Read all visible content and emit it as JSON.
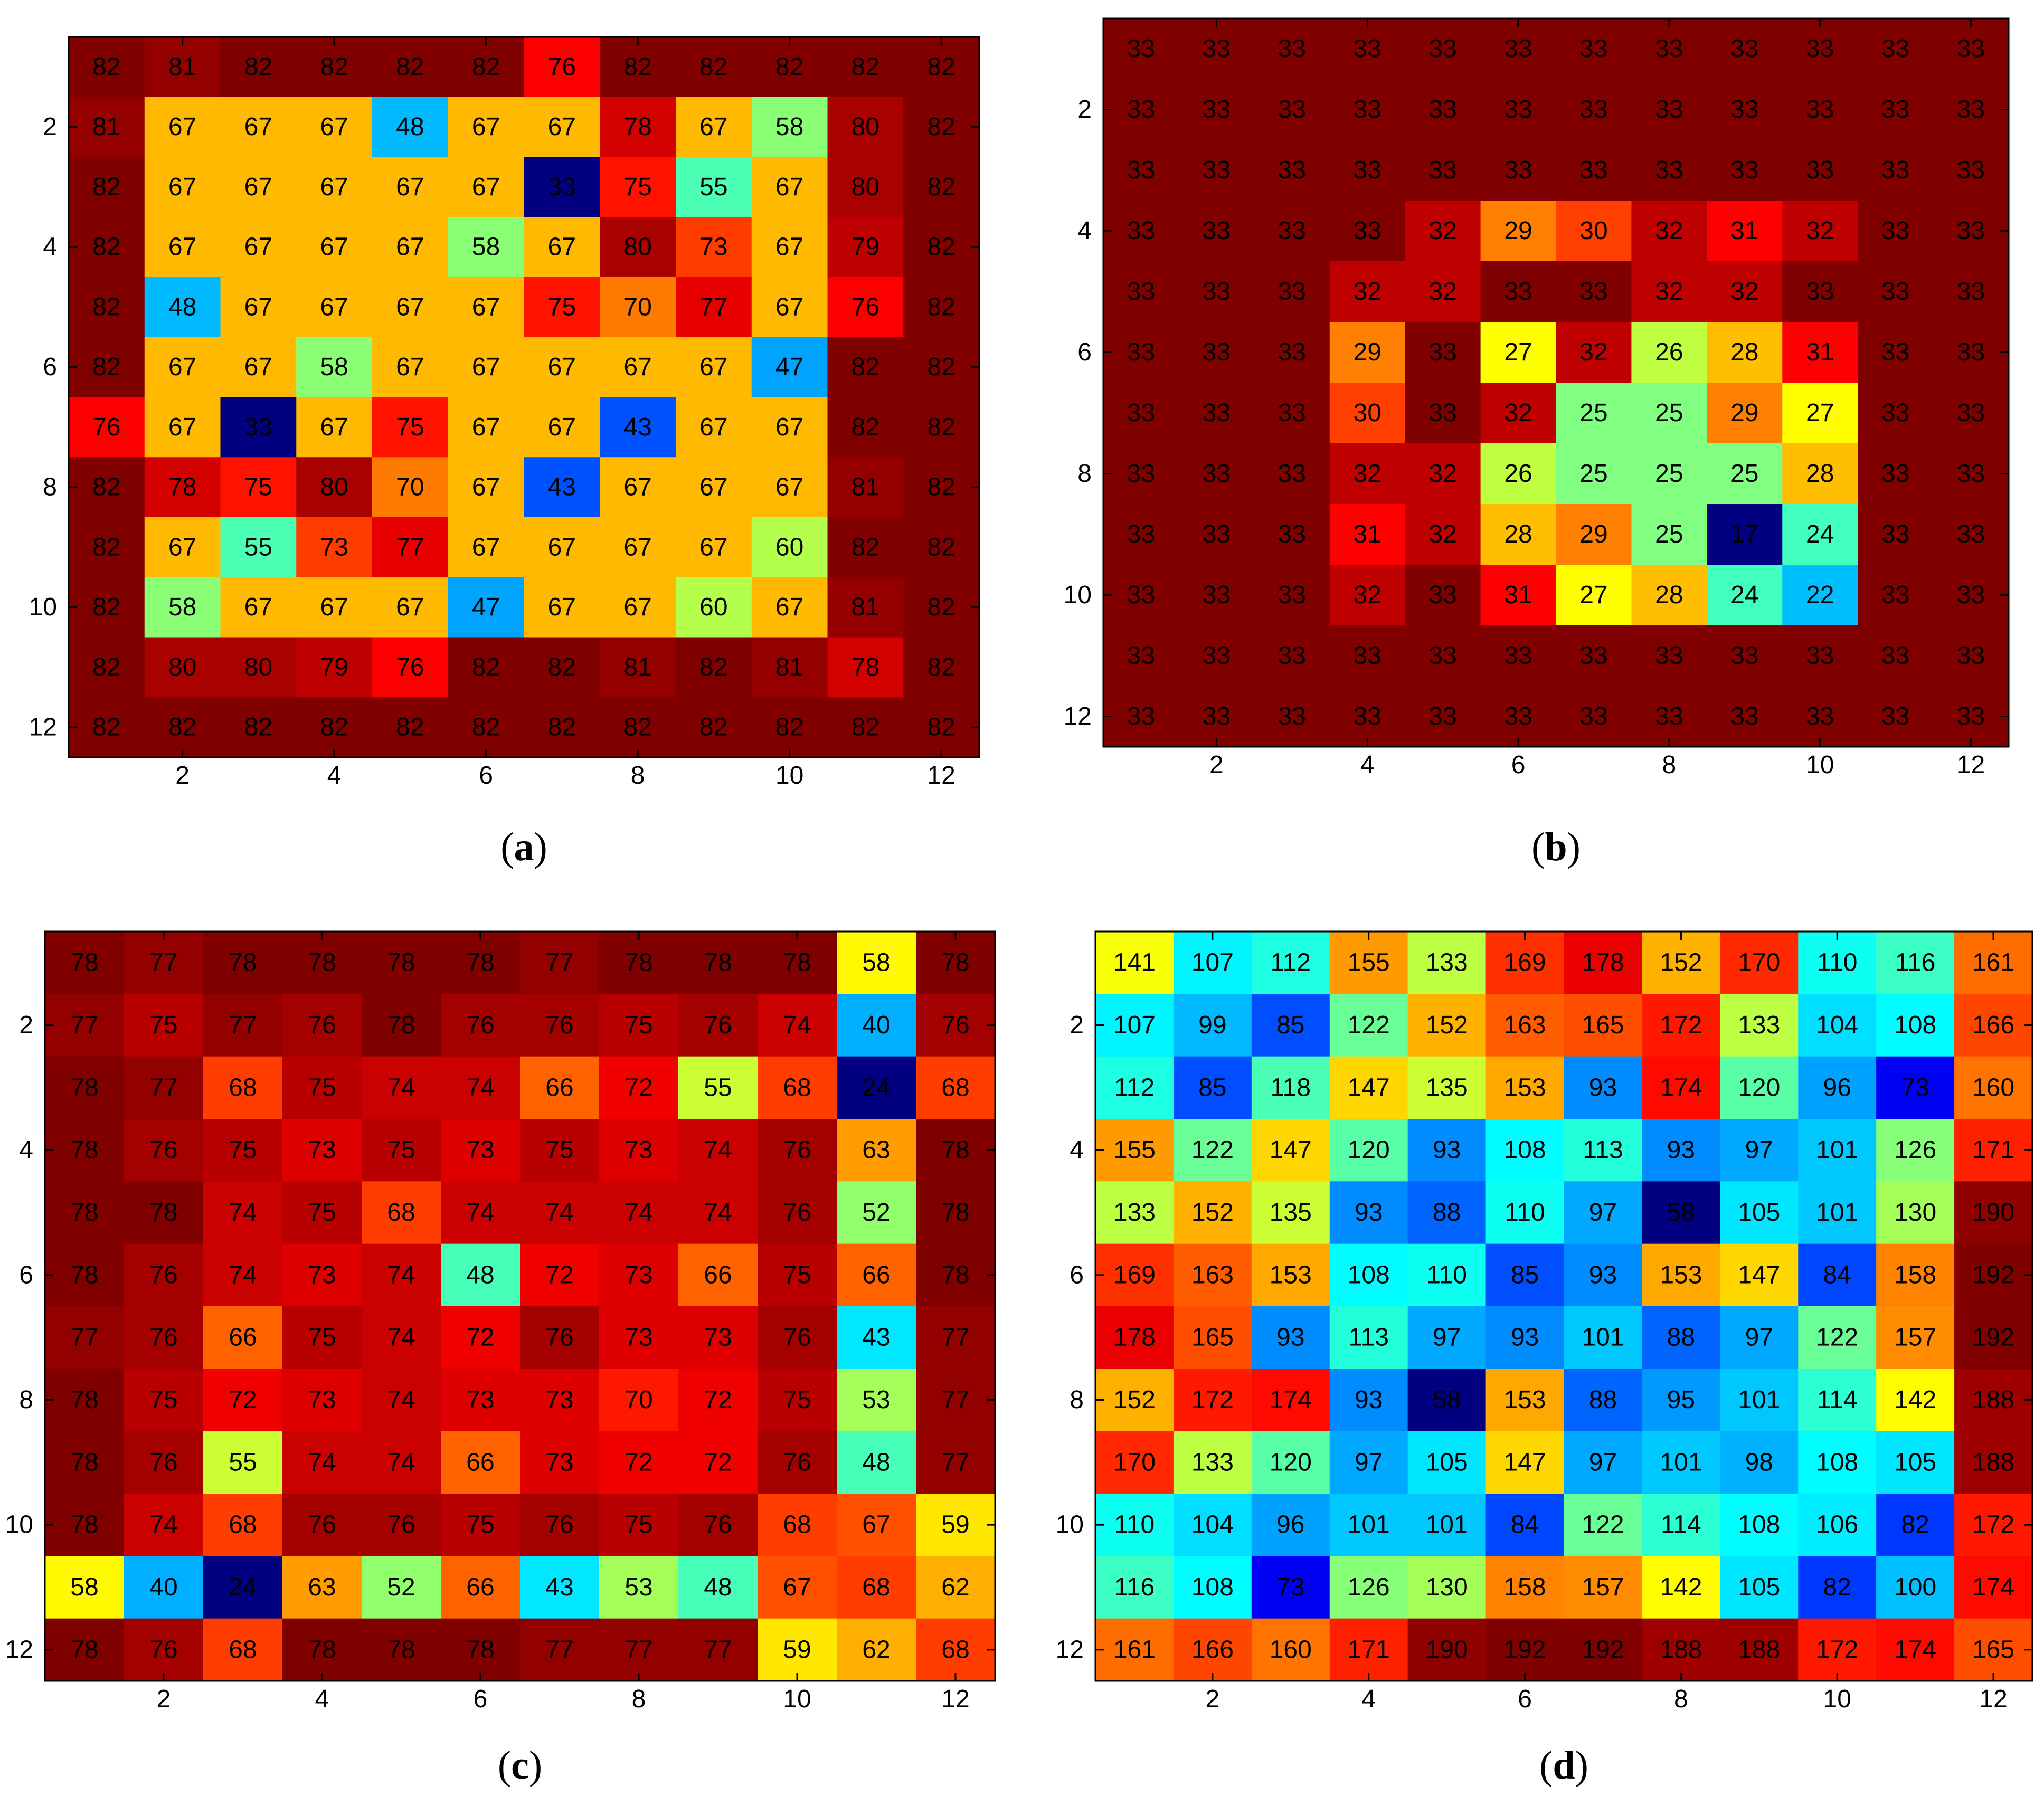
{
  "figure": {
    "colormap": "jet"
  },
  "chart_data": [
    {
      "type": "heatmap",
      "panel": "a",
      "caption": {
        "open": "(",
        "letter": "a",
        "close": ")"
      },
      "xticks": [
        2,
        4,
        6,
        8,
        10,
        12
      ],
      "yticks": [
        2,
        4,
        6,
        8,
        10,
        12
      ],
      "color_range": [
        33,
        82
      ],
      "values": [
        [
          82,
          81,
          82,
          82,
          82,
          82,
          76,
          82,
          82,
          82,
          82,
          82
        ],
        [
          81,
          67,
          67,
          67,
          48,
          67,
          67,
          78,
          67,
          58,
          80,
          82
        ],
        [
          82,
          67,
          67,
          67,
          67,
          67,
          33,
          75,
          55,
          67,
          80,
          82
        ],
        [
          82,
          67,
          67,
          67,
          67,
          58,
          67,
          80,
          73,
          67,
          79,
          82
        ],
        [
          82,
          48,
          67,
          67,
          67,
          67,
          75,
          70,
          77,
          67,
          76,
          82
        ],
        [
          82,
          67,
          67,
          58,
          67,
          67,
          67,
          67,
          67,
          47,
          82,
          82
        ],
        [
          76,
          67,
          33,
          67,
          75,
          67,
          67,
          43,
          67,
          67,
          82,
          82
        ],
        [
          82,
          78,
          75,
          80,
          70,
          67,
          43,
          67,
          67,
          67,
          81,
          82
        ],
        [
          82,
          67,
          55,
          73,
          77,
          67,
          67,
          67,
          67,
          60,
          82,
          82
        ],
        [
          82,
          58,
          67,
          67,
          67,
          47,
          67,
          67,
          60,
          67,
          81,
          82
        ],
        [
          82,
          80,
          80,
          79,
          76,
          82,
          82,
          81,
          82,
          81,
          78,
          82
        ],
        [
          82,
          82,
          82,
          82,
          82,
          82,
          82,
          82,
          82,
          82,
          82,
          82
        ]
      ]
    },
    {
      "type": "heatmap",
      "panel": "b",
      "caption": {
        "open": "(",
        "letter": "b",
        "close": ")"
      },
      "xticks": [
        2,
        4,
        6,
        8,
        10,
        12
      ],
      "yticks": [
        2,
        4,
        6,
        8,
        10,
        12
      ],
      "color_range": [
        17,
        33
      ],
      "values": [
        [
          33,
          33,
          33,
          33,
          33,
          33,
          33,
          33,
          33,
          33,
          33,
          33
        ],
        [
          33,
          33,
          33,
          33,
          33,
          33,
          33,
          33,
          33,
          33,
          33,
          33
        ],
        [
          33,
          33,
          33,
          33,
          33,
          33,
          33,
          33,
          33,
          33,
          33,
          33
        ],
        [
          33,
          33,
          33,
          33,
          32,
          29,
          30,
          32,
          31,
          32,
          33,
          33
        ],
        [
          33,
          33,
          33,
          32,
          32,
          33,
          33,
          32,
          32,
          33,
          33,
          33
        ],
        [
          33,
          33,
          33,
          29,
          33,
          27,
          32,
          26,
          28,
          31,
          33,
          33
        ],
        [
          33,
          33,
          33,
          30,
          33,
          32,
          25,
          25,
          29,
          27,
          33,
          33
        ],
        [
          33,
          33,
          33,
          32,
          32,
          26,
          25,
          25,
          25,
          28,
          33,
          33
        ],
        [
          33,
          33,
          33,
          31,
          32,
          28,
          29,
          25,
          17,
          24,
          33,
          33
        ],
        [
          33,
          33,
          33,
          32,
          33,
          31,
          27,
          28,
          24,
          22,
          33,
          33
        ],
        [
          33,
          33,
          33,
          33,
          33,
          33,
          33,
          33,
          33,
          33,
          33,
          33
        ],
        [
          33,
          33,
          33,
          33,
          33,
          33,
          33,
          33,
          33,
          33,
          33,
          33
        ]
      ]
    },
    {
      "type": "heatmap",
      "panel": "c",
      "caption": {
        "open": "(",
        "letter": "c",
        "close": ")"
      },
      "xticks": [
        2,
        4,
        6,
        8,
        10,
        12
      ],
      "yticks": [
        2,
        4,
        6,
        8,
        10,
        12
      ],
      "color_range": [
        24,
        78
      ],
      "values": [
        [
          78,
          77,
          78,
          78,
          78,
          78,
          77,
          78,
          78,
          78,
          58,
          78
        ],
        [
          77,
          75,
          77,
          76,
          78,
          76,
          76,
          75,
          76,
          74,
          40,
          76
        ],
        [
          78,
          77,
          68,
          75,
          74,
          74,
          66,
          72,
          55,
          68,
          24,
          68
        ],
        [
          78,
          76,
          75,
          73,
          75,
          73,
          75,
          73,
          74,
          76,
          63,
          78
        ],
        [
          78,
          78,
          74,
          75,
          68,
          74,
          74,
          74,
          74,
          76,
          52,
          78
        ],
        [
          78,
          76,
          74,
          73,
          74,
          48,
          72,
          73,
          66,
          75,
          66,
          78
        ],
        [
          77,
          76,
          66,
          75,
          74,
          72,
          76,
          73,
          73,
          76,
          43,
          77
        ],
        [
          78,
          75,
          72,
          73,
          74,
          73,
          73,
          70,
          72,
          75,
          53,
          77
        ],
        [
          78,
          76,
          55,
          74,
          74,
          66,
          73,
          72,
          72,
          76,
          48,
          77
        ],
        [
          78,
          74,
          68,
          76,
          76,
          75,
          76,
          75,
          76,
          68,
          67,
          59
        ],
        [
          58,
          40,
          24,
          63,
          52,
          66,
          43,
          53,
          48,
          67,
          68,
          62
        ],
        [
          78,
          76,
          68,
          78,
          78,
          78,
          77,
          77,
          77,
          59,
          62,
          68
        ]
      ]
    },
    {
      "type": "heatmap",
      "panel": "d",
      "caption": {
        "open": "(",
        "letter": "d",
        "close": ")"
      },
      "xticks": [
        2,
        4,
        6,
        8,
        10,
        12
      ],
      "yticks": [
        2,
        4,
        6,
        8,
        10,
        12
      ],
      "color_range": [
        58,
        192
      ],
      "values": [
        [
          141,
          107,
          112,
          155,
          133,
          169,
          178,
          152,
          170,
          110,
          116,
          161
        ],
        [
          107,
          99,
          85,
          122,
          152,
          163,
          165,
          172,
          133,
          104,
          108,
          166
        ],
        [
          112,
          85,
          118,
          147,
          135,
          153,
          93,
          174,
          120,
          96,
          73,
          160
        ],
        [
          155,
          122,
          147,
          120,
          93,
          108,
          113,
          93,
          97,
          101,
          126,
          171
        ],
        [
          133,
          152,
          135,
          93,
          88,
          110,
          97,
          58,
          105,
          101,
          130,
          190
        ],
        [
          169,
          163,
          153,
          108,
          110,
          85,
          93,
          153,
          147,
          84,
          158,
          192
        ],
        [
          178,
          165,
          93,
          113,
          97,
          93,
          101,
          88,
          97,
          122,
          157,
          192
        ],
        [
          152,
          172,
          174,
          93,
          58,
          153,
          88,
          95,
          101,
          114,
          142,
          188
        ],
        [
          170,
          133,
          120,
          97,
          105,
          147,
          97,
          101,
          98,
          108,
          105,
          188
        ],
        [
          110,
          104,
          96,
          101,
          101,
          84,
          122,
          114,
          108,
          106,
          82,
          172
        ],
        [
          116,
          108,
          73,
          126,
          130,
          158,
          157,
          142,
          105,
          82,
          100,
          174
        ],
        [
          161,
          166,
          160,
          171,
          190,
          192,
          192,
          188,
          188,
          172,
          174,
          165
        ]
      ]
    }
  ]
}
